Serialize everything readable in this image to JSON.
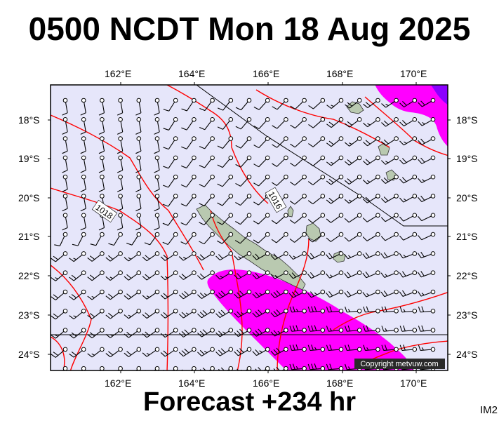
{
  "title": "0500 NCDT Mon 18 Aug 2025",
  "footer": "Forecast +234 hr",
  "image_code": "IM2",
  "copyright": "Copyright metvuw.com",
  "lon_labels": [
    "162°E",
    "164°E",
    "166°E",
    "168°E",
    "170°E"
  ],
  "lat_labels": [
    "18°S",
    "19°S",
    "20°S",
    "21°S",
    "22°S",
    "23°S",
    "24°S"
  ],
  "isobar_labels": [
    "1018",
    "1016"
  ],
  "colors": {
    "sea": "#e6e6fa",
    "land": "#b9c9b0",
    "isobar": "#ff0000",
    "wind_strong": "#ff00ff",
    "wind_stronger": "#8b00ff"
  }
}
